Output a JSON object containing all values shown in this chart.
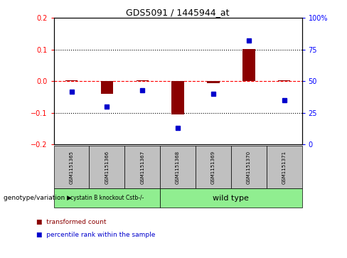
{
  "title": "GDS5091 / 1445944_at",
  "samples": [
    "GSM1151365",
    "GSM1151366",
    "GSM1151367",
    "GSM1151368",
    "GSM1151369",
    "GSM1151370",
    "GSM1151371"
  ],
  "red_values": [
    0.003,
    -0.04,
    0.003,
    -0.105,
    -0.005,
    0.102,
    0.002
  ],
  "blue_values_pct": [
    42,
    30,
    43,
    13,
    40,
    82,
    35
  ],
  "ylim_left": [
    -0.2,
    0.2
  ],
  "ylim_right": [
    0,
    100
  ],
  "yticks_left": [
    -0.2,
    -0.1,
    0.0,
    0.1,
    0.2
  ],
  "yticks_right": [
    0,
    25,
    50,
    75,
    100
  ],
  "ytick_labels_right": [
    "0",
    "25",
    "50",
    "75",
    "100%"
  ],
  "hlines_dotted": [
    0.1,
    -0.1
  ],
  "hline_dashed": 0.0,
  "bar_color": "#8B0000",
  "dot_color": "#0000CC",
  "bar_width": 0.35,
  "knockout_samples_n": 3,
  "wildtype_samples_n": 4,
  "knockout_label": "cystatin B knockout Cstb-/-",
  "wildtype_label": "wild type",
  "group_label": "genotype/variation",
  "legend_red": "transformed count",
  "legend_blue": "percentile rank within the sample",
  "knockout_color": "#90EE90",
  "wildtype_color": "#90EE90",
  "sample_box_color": "#C0C0C0",
  "bg_color": "#FFFFFF"
}
